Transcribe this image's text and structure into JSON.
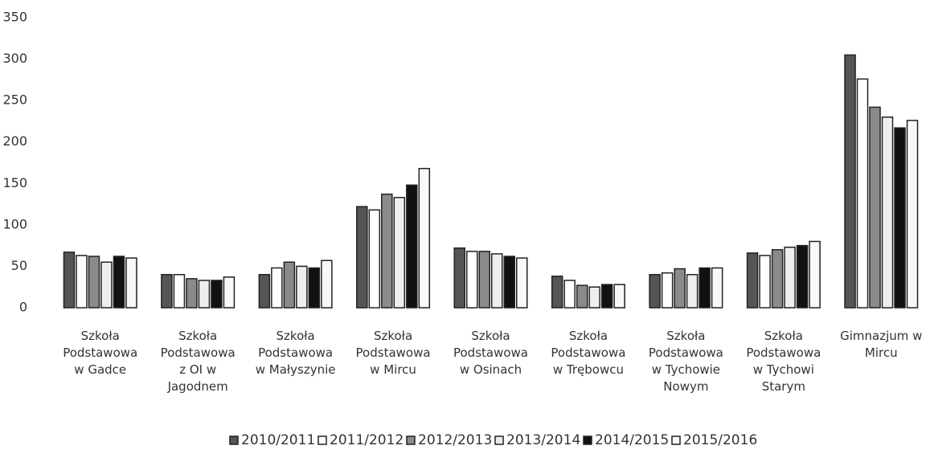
{
  "chart_data": {
    "type": "bar",
    "categories": [
      "Szkoła\nPodstawowa\nw Gadce",
      "Szkoła\nPodstawowa\nz OI w\nJagodnem",
      "Szkoła\nPodstawowa\nw Małyszynie",
      "Szkoła\nPodstawowa\nw Mircu",
      "Szkoła\nPodstawowa\nw Osinach",
      "Szkoła\nPodstawowa\nw Trębowcu",
      "Szkoła\nPodstawowa\nw Tychowie\nNowym",
      "Szkoła\nPodstawowa\nw Tychowi\nStarym",
      "Gimnazjum w\nMircu"
    ],
    "series": [
      {
        "name": "2010/2011",
        "color": "#555555",
        "values": [
          67,
          40,
          40,
          122,
          72,
          38,
          40,
          66,
          305
        ]
      },
      {
        "name": "2011/2012",
        "color": "#ffffff",
        "values": [
          63,
          40,
          48,
          118,
          68,
          33,
          42,
          63,
          276
        ]
      },
      {
        "name": "2012/2013",
        "color": "#8a8a8a",
        "values": [
          62,
          35,
          55,
          137,
          68,
          27,
          47,
          70,
          242
        ]
      },
      {
        "name": "2013/2014",
        "color": "#eeeeee",
        "values": [
          55,
          33,
          50,
          133,
          65,
          25,
          40,
          73,
          230
        ]
      },
      {
        "name": "2014/2015",
        "color": "#111111",
        "values": [
          62,
          33,
          48,
          148,
          62,
          28,
          48,
          75,
          217
        ]
      },
      {
        "name": "2015/2016",
        "color": "#f8f8f8",
        "values": [
          60,
          37,
          57,
          168,
          60,
          28,
          48,
          80,
          226
        ]
      }
    ],
    "ylim": [
      0,
      350
    ],
    "yticks": [
      0,
      50,
      100,
      150,
      200,
      250,
      300,
      350
    ],
    "grid": false,
    "legend": "bottom"
  }
}
